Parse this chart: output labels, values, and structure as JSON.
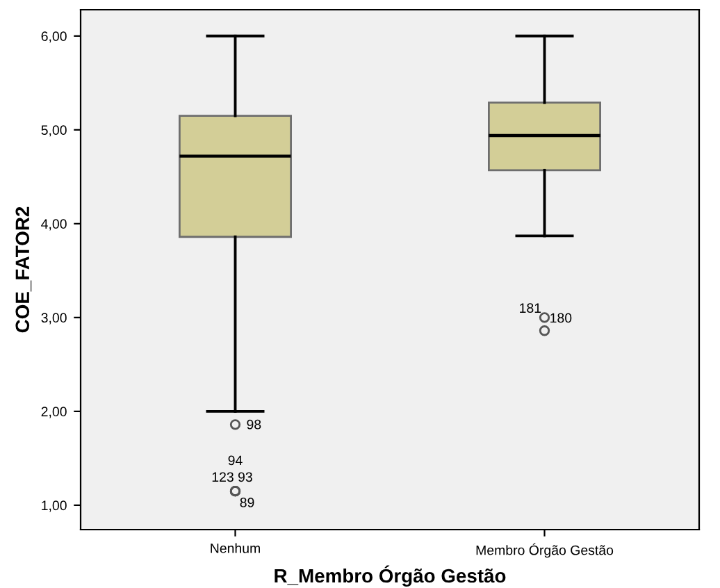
{
  "chart_data": {
    "type": "box",
    "xlabel": "R_Membro Órgão Gestão",
    "ylabel": "COE_FATOR2",
    "categories": [
      "Nenhum",
      "Membro Órgão Gestão"
    ],
    "color": "#d3ce97",
    "boxes": [
      {
        "low": 2.0,
        "q1": 3.86,
        "median": 4.72,
        "q3": 5.15,
        "high": 6.0,
        "outliers": [
          1.86,
          1.15,
          1.15,
          1.15,
          1.15
        ]
      },
      {
        "low": 3.87,
        "q1": 4.57,
        "median": 4.94,
        "q3": 5.29,
        "high": 6.0,
        "outliers": [
          3.0,
          2.86
        ]
      }
    ],
    "ylim": [
      0.74,
      6.28
    ],
    "yticks": [
      {
        "value": 1,
        "label": "1,00"
      },
      {
        "value": 2,
        "label": "2,00"
      },
      {
        "value": 3,
        "label": "3,00"
      },
      {
        "value": 4,
        "label": "4,00"
      },
      {
        "value": 5,
        "label": "5,00"
      },
      {
        "value": 6,
        "label": "6,00"
      }
    ],
    "grid": false,
    "annotations": [
      "98",
      "94",
      "123",
      "93",
      "89",
      "181",
      "180"
    ]
  }
}
